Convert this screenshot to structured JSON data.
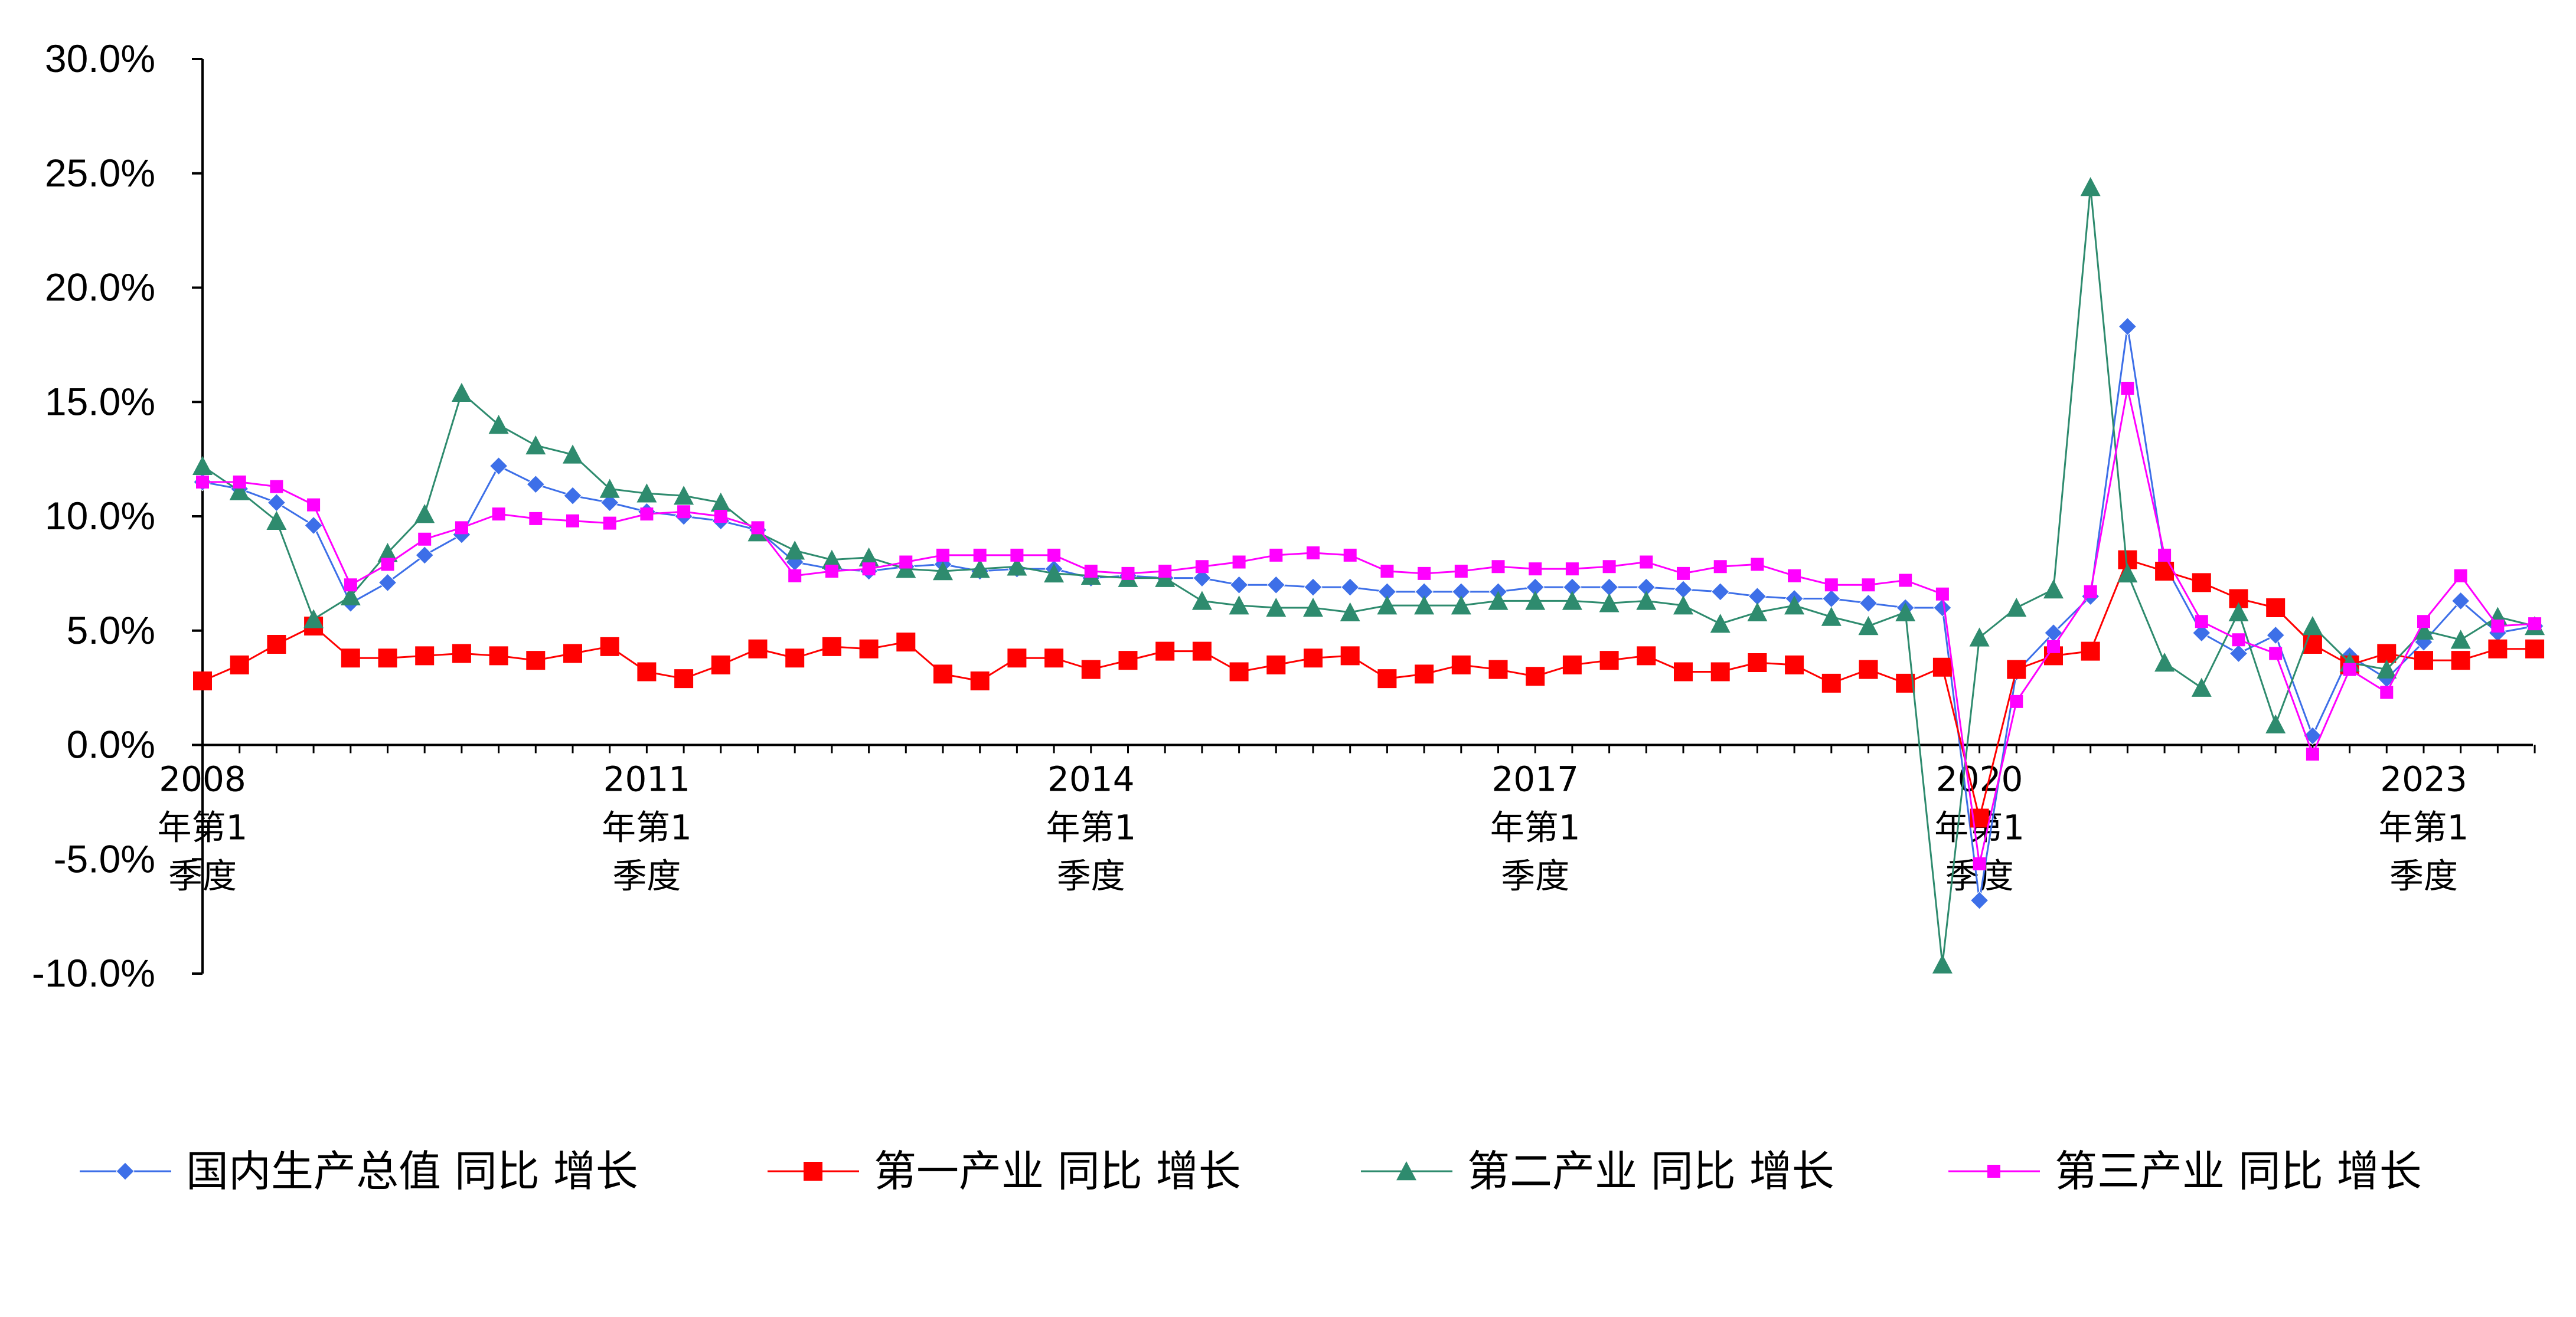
{
  "chart_data": {
    "type": "line",
    "title": "",
    "xlabel": "",
    "ylabel": "",
    "ylim": [
      -0.1,
      0.3
    ],
    "y_ticks": [
      -0.1,
      -0.05,
      0.0,
      0.05,
      0.1,
      0.15,
      0.2,
      0.25,
      0.3
    ],
    "y_tick_labels": [
      "-10.0%",
      "-5.0%",
      "0.0%",
      "5.0%",
      "10.0%",
      "15.0%",
      "20.0%",
      "25.0%",
      "30.0%"
    ],
    "grid": false,
    "legend_position": "bottom",
    "x_start": "2008Q1",
    "x_ticks": [
      {
        "index": 0,
        "lines": [
          "2008",
          "年第1",
          "季度"
        ]
      },
      {
        "index": 12,
        "lines": [
          "2011",
          "年第1",
          "季度"
        ]
      },
      {
        "index": 24,
        "lines": [
          "2014",
          "年第1",
          "季度"
        ]
      },
      {
        "index": 36,
        "lines": [
          "2017",
          "年第1",
          "季度"
        ]
      },
      {
        "index": 48,
        "lines": [
          "2020",
          "年第1",
          "季度"
        ]
      },
      {
        "index": 60,
        "lines": [
          "2023",
          "年第1",
          "季度"
        ]
      }
    ],
    "series": [
      {
        "name": "国内生产总值 同比 增长",
        "color": "#3d6fe8",
        "marker": "diamond",
        "values": [
          0.115,
          0.112,
          0.106,
          0.096,
          0.062,
          0.071,
          0.083,
          0.092,
          0.122,
          0.114,
          0.109,
          0.106,
          0.102,
          0.1,
          0.098,
          0.094,
          0.08,
          0.077,
          0.076,
          0.078,
          0.079,
          0.076,
          0.077,
          0.077,
          0.073,
          0.074,
          0.073,
          0.073,
          0.07,
          0.07,
          0.069,
          0.069,
          0.067,
          0.067,
          0.067,
          0.067,
          0.069,
          0.069,
          0.069,
          0.069,
          0.068,
          0.067,
          0.065,
          0.064,
          0.064,
          0.062,
          0.06,
          0.06,
          -0.068,
          0.032,
          0.049,
          0.065,
          0.183,
          0.079,
          0.049,
          0.04,
          0.048,
          0.004,
          0.039,
          0.029,
          0.045,
          0.063,
          0.049,
          0.052
        ]
      },
      {
        "name": "第一产业 同比 增长",
        "color": "#ff0000",
        "marker": "square",
        "values": [
          0.028,
          0.035,
          0.044,
          0.052,
          0.038,
          0.038,
          0.039,
          0.04,
          0.039,
          0.037,
          0.04,
          0.043,
          0.032,
          0.029,
          0.035,
          0.042,
          0.038,
          0.043,
          0.042,
          0.045,
          0.031,
          0.028,
          0.038,
          0.038,
          0.033,
          0.037,
          0.041,
          0.041,
          0.032,
          0.035,
          0.038,
          0.039,
          0.029,
          0.031,
          0.035,
          0.033,
          0.03,
          0.035,
          0.037,
          0.039,
          0.032,
          0.032,
          0.036,
          0.035,
          0.027,
          0.033,
          0.027,
          0.034,
          -0.032,
          0.033,
          0.039,
          0.041,
          0.081,
          0.076,
          0.071,
          0.064,
          0.06,
          0.044,
          0.035,
          0.04,
          0.037,
          0.037,
          0.042,
          0.042
        ]
      },
      {
        "name": "第二产业 同比 增长",
        "color": "#2e8b6e",
        "marker": "triangle",
        "values": [
          0.122,
          0.111,
          0.098,
          0.055,
          0.065,
          0.084,
          0.101,
          0.154,
          0.14,
          0.131,
          0.127,
          0.112,
          0.11,
          0.109,
          0.106,
          0.093,
          0.085,
          0.081,
          0.082,
          0.077,
          0.076,
          0.077,
          0.078,
          0.075,
          0.074,
          0.073,
          0.073,
          0.063,
          0.061,
          0.06,
          0.06,
          0.058,
          0.061,
          0.061,
          0.061,
          0.063,
          0.063,
          0.063,
          0.062,
          0.063,
          0.061,
          0.053,
          0.058,
          0.061,
          0.056,
          0.052,
          0.058,
          -0.096,
          0.047,
          0.06,
          0.068,
          0.244,
          0.075,
          0.036,
          0.025,
          0.058,
          0.009,
          0.052,
          0.036,
          0.033,
          0.05,
          0.046,
          0.056,
          0.052
        ]
      },
      {
        "name": "第三产业 同比 增长",
        "color": "#ff00ff",
        "marker": "square-small",
        "values": [
          0.115,
          0.115,
          0.113,
          0.105,
          0.07,
          0.079,
          0.09,
          0.095,
          0.101,
          0.099,
          0.098,
          0.097,
          0.101,
          0.102,
          0.1,
          0.095,
          0.074,
          0.076,
          0.077,
          0.08,
          0.083,
          0.083,
          0.083,
          0.083,
          0.076,
          0.075,
          0.076,
          0.078,
          0.08,
          0.083,
          0.084,
          0.083,
          0.076,
          0.075,
          0.076,
          0.078,
          0.077,
          0.077,
          0.078,
          0.08,
          0.075,
          0.078,
          0.079,
          0.074,
          0.07,
          0.07,
          0.072,
          0.066,
          -0.052,
          0.019,
          0.043,
          0.067,
          0.156,
          0.083,
          0.054,
          0.046,
          0.04,
          -0.004,
          0.033,
          0.023,
          0.054,
          0.074,
          0.052,
          0.053
        ]
      }
    ]
  }
}
